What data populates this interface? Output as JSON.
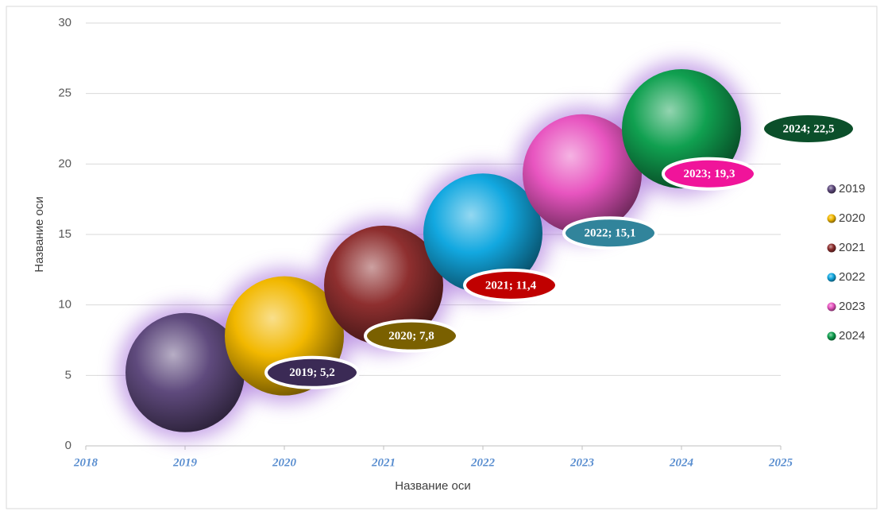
{
  "chart_data": {
    "type": "bubble",
    "xlabel": "Название оси",
    "ylabel": "Название оси",
    "xlim": [
      2018,
      2025
    ],
    "xticks": [
      2018,
      2019,
      2020,
      2021,
      2022,
      2023,
      2024,
      2025
    ],
    "ylim": [
      0,
      30
    ],
    "yticks": [
      0,
      5,
      10,
      15,
      20,
      25,
      30
    ],
    "grid": true,
    "legend": "right",
    "series": [
      {
        "name": "2019",
        "color": "#5f4a7d",
        "label_color": "#3b2a55",
        "x": [
          2019
        ],
        "values": [
          5.2
        ],
        "value_labels": [
          "2019; 5,2"
        ]
      },
      {
        "name": "2020",
        "color": "#f2b800",
        "label_color": "#7a6000",
        "x": [
          2020
        ],
        "values": [
          7.8
        ],
        "value_labels": [
          "2020; 7,8"
        ]
      },
      {
        "name": "2021",
        "color": "#8e2f2f",
        "label_color": "#c00000",
        "x": [
          2021
        ],
        "values": [
          11.4
        ],
        "value_labels": [
          "2021; 11,4"
        ]
      },
      {
        "name": "2022",
        "color": "#12a8e0",
        "label_color": "#31849b",
        "x": [
          2022
        ],
        "values": [
          15.1
        ],
        "value_labels": [
          "2022; 15,1"
        ]
      },
      {
        "name": "2023",
        "color": "#e855c0",
        "label_color": "#f0149a",
        "x": [
          2023
        ],
        "values": [
          19.3
        ],
        "value_labels": [
          "2023; 19,3"
        ]
      },
      {
        "name": "2024",
        "color": "#10a050",
        "label_color": "#0b4f2a",
        "x": [
          2024
        ],
        "values": [
          22.5
        ],
        "value_labels": [
          "2024; 22,5"
        ]
      }
    ]
  }
}
